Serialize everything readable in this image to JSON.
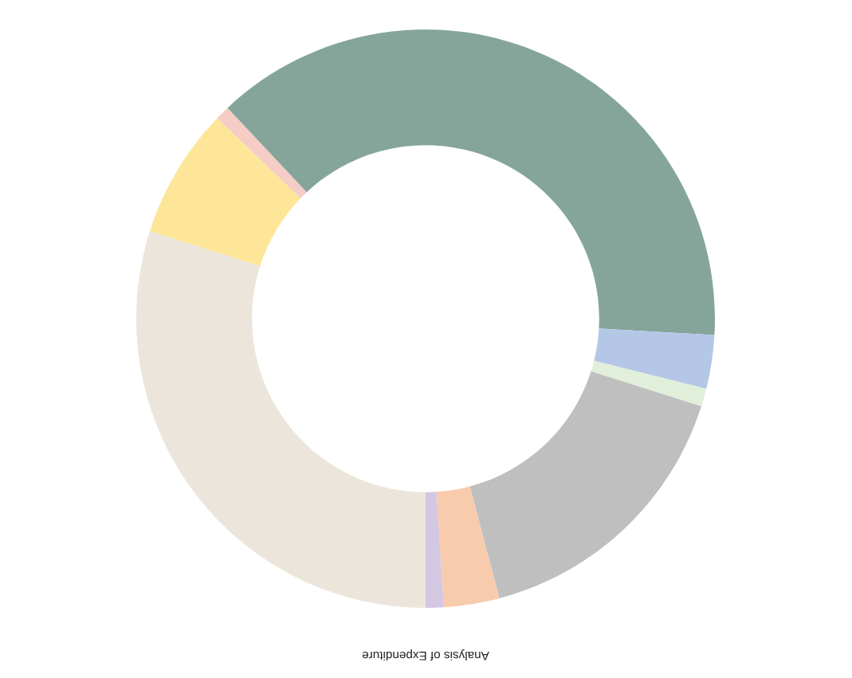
{
  "chart_data": {
    "type": "donut",
    "title": "Analysis of Expenditure",
    "categories": [
      null,
      null,
      null,
      null,
      null,
      null,
      null,
      null,
      null
    ],
    "values": [
      29.9,
      7.3,
      0.8,
      37.9,
      3.0,
      1.0,
      16.0,
      3.1,
      1.0
    ],
    "colors": [
      "#ece5db",
      "#fee699",
      "#f5cdc6",
      "#85a59a",
      "#b4c7e7",
      "#e2efda",
      "#bfbfbf",
      "#f8cbad",
      "#d4c7e2"
    ],
    "legend": false
  }
}
